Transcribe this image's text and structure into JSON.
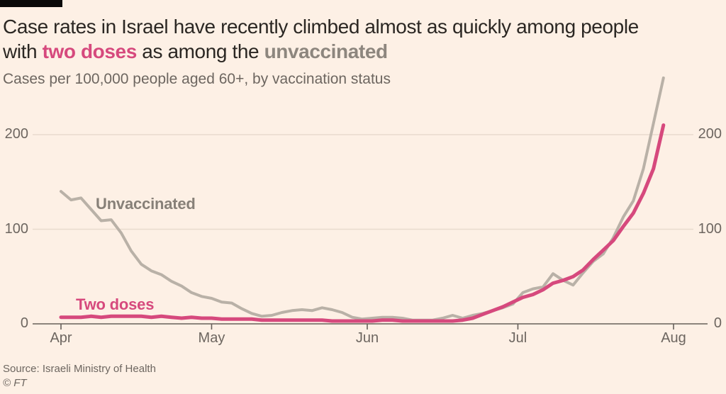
{
  "header": {
    "title_line1": "Case rates in Israel have recently climbed almost as quickly among people",
    "title_line2_pre": "with",
    "title_line2_highlight": "two doses",
    "title_line2_mid": "as among the",
    "title_line2_highlight2": "unvaccinated",
    "subtitle": "Cases per 100,000 people aged 60+, by vaccination status"
  },
  "footer": {
    "source": "Source: Israeli Ministry of Health",
    "credit": "© FT"
  },
  "colors": {
    "background": "#fdf0e5",
    "title_text": "#2b2723",
    "muted_text": "#6d6660",
    "two_doses_pink": "#d6497d",
    "unvaccinated_line": "#b9b1a7",
    "unvaccinated_label": "#878078",
    "axis": "#66605a",
    "gridline": "#e9dbce",
    "top_bar": "#0a0a0a"
  },
  "chart_data": {
    "type": "line",
    "title": "Case rates in Israel have recently climbed almost as quickly among people with two doses as among the unvaccinated",
    "subtitle": "Cases per 100,000 people aged 60+, by vaccination status",
    "xlabel": "",
    "ylabel": "Cases per 100,000 people aged 60+",
    "x_unit": "days since 1 April",
    "x_tick_labels": [
      "Apr",
      "May",
      "Jun",
      "Jul",
      "Aug"
    ],
    "x_tick_days": [
      0,
      30,
      61,
      91,
      122
    ],
    "y_ticks": [
      0,
      100,
      200
    ],
    "ylim": [
      0,
      264
    ],
    "grid": "horizontal-only",
    "legend_position": "inline-labels",
    "day_step": 2,
    "series": [
      {
        "name": "Unvaccinated",
        "color": "#b9b1a7",
        "values": [
          140,
          131,
          133,
          121,
          109,
          110,
          96,
          77,
          63,
          56,
          52,
          45,
          40,
          33,
          29,
          27,
          23,
          22,
          16,
          11,
          8,
          9,
          12,
          14,
          15,
          14,
          17,
          15,
          12,
          7,
          5,
          6,
          7,
          7,
          6,
          4,
          4,
          4,
          6,
          9,
          6,
          9,
          11,
          14,
          17,
          21,
          33,
          37,
          39,
          53,
          46,
          41,
          54,
          66,
          74,
          91,
          113,
          130,
          164,
          212,
          260
        ]
      },
      {
        "name": "Two doses",
        "color": "#d6497d",
        "values": [
          7,
          7,
          7,
          8,
          7,
          8,
          8,
          8,
          8,
          7,
          8,
          7,
          6,
          7,
          6,
          6,
          5,
          5,
          5,
          5,
          4,
          4,
          4,
          4,
          4,
          4,
          4,
          3,
          3,
          3,
          3,
          3,
          4,
          4,
          3,
          3,
          3,
          3,
          3,
          3,
          4,
          6,
          10,
          14,
          18,
          23,
          28,
          31,
          36,
          43,
          46,
          50,
          57,
          68,
          78,
          88,
          103,
          117,
          138,
          164,
          210
        ]
      }
    ]
  }
}
